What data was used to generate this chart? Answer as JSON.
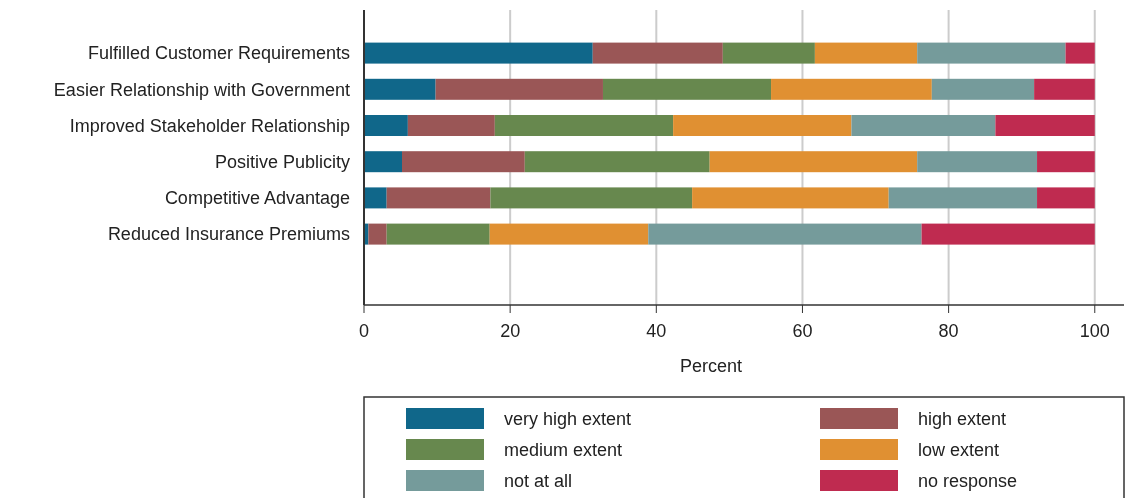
{
  "chart_data": {
    "type": "bar",
    "orientation": "horizontal",
    "stacked": true,
    "xlabel": "Percent",
    "categories": [
      "Fulfilled Customer Requirements",
      "Easier Relationship with Government",
      "Improved Stakeholder Relationship",
      "Positive Publicity",
      "Competitive Advantage",
      "Reduced Insurance Premiums"
    ],
    "series": [
      {
        "name": "very high extent",
        "color": "#10678a",
        "values": [
          31.3,
          9.8,
          6.0,
          5.2,
          3.1,
          0.6
        ]
      },
      {
        "name": "high extent",
        "color": "#9a5656",
        "values": [
          17.8,
          22.9,
          11.9,
          16.8,
          14.2,
          2.5
        ]
      },
      {
        "name": "medium extent",
        "color": "#67884e",
        "values": [
          12.6,
          23.0,
          24.4,
          25.3,
          27.6,
          14.1
        ]
      },
      {
        "name": "low extent",
        "color": "#e09032",
        "values": [
          14.0,
          22.0,
          24.4,
          28.4,
          26.9,
          21.7
        ]
      },
      {
        "name": "not at all",
        "color": "#759b9b",
        "values": [
          20.3,
          14.0,
          19.7,
          16.4,
          20.3,
          37.4
        ]
      },
      {
        "name": "no response",
        "color": "#bf2b50",
        "values": [
          4.0,
          8.3,
          13.6,
          7.9,
          7.9,
          23.7
        ]
      }
    ],
    "xlim": [
      0,
      104
    ],
    "xticks": [
      0,
      20,
      40,
      60,
      80,
      100
    ],
    "grid": "x",
    "legend": "bottom"
  }
}
